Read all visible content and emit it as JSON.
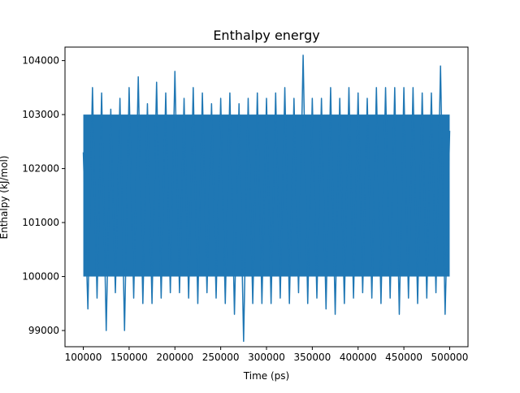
{
  "chart_data": {
    "type": "line",
    "title": "Enthalpy energy",
    "xlabel": "Time (ps)",
    "ylabel": "Enthalpy (kJ/mol)",
    "xlim": [
      80000,
      520000
    ],
    "ylim": [
      98700,
      104250
    ],
    "x_ticks": [
      100000,
      150000,
      200000,
      250000,
      300000,
      350000,
      400000,
      450000,
      500000
    ],
    "x_tick_labels": [
      "100000",
      "150000",
      "200000",
      "250000",
      "300000",
      "350000",
      "400000",
      "450000",
      "500000"
    ],
    "y_ticks": [
      99000,
      100000,
      101000,
      102000,
      103000,
      104000
    ],
    "y_tick_labels": [
      "99000",
      "100000",
      "101000",
      "102000",
      "103000",
      "104000"
    ],
    "grid": false,
    "legend": "none",
    "series": [
      {
        "color": "#1f77b4",
        "x": [
          100000,
          105000,
          110000,
          115000,
          120000,
          125000,
          130000,
          135000,
          140000,
          145000,
          150000,
          155000,
          160000,
          165000,
          170000,
          175000,
          180000,
          185000,
          190000,
          195000,
          200000,
          205000,
          210000,
          215000,
          220000,
          225000,
          230000,
          235000,
          240000,
          245000,
          250000,
          255000,
          260000,
          265000,
          270000,
          275000,
          280000,
          285000,
          290000,
          295000,
          300000,
          305000,
          310000,
          315000,
          320000,
          325000,
          330000,
          335000,
          340000,
          345000,
          350000,
          355000,
          360000,
          365000,
          370000,
          375000,
          380000,
          385000,
          390000,
          395000,
          400000,
          405000,
          410000,
          415000,
          420000,
          425000,
          430000,
          435000,
          440000,
          445000,
          450000,
          455000,
          460000,
          465000,
          470000,
          475000,
          480000,
          485000,
          490000,
          495000,
          500000
        ],
        "y": [
          102300,
          99400,
          103500,
          99600,
          103400,
          99000,
          103100,
          99700,
          103300,
          99000,
          103500,
          99600,
          103700,
          99500,
          103200,
          99500,
          103600,
          99600,
          103400,
          99700,
          103800,
          99700,
          103300,
          99600,
          103500,
          99500,
          103400,
          99700,
          103200,
          99600,
          103300,
          99500,
          103400,
          99300,
          103200,
          98800,
          103300,
          99500,
          103400,
          99500,
          103300,
          99500,
          103400,
          99600,
          103500,
          99500,
          103300,
          99700,
          104100,
          99500,
          103300,
          99600,
          103300,
          99400,
          103500,
          99300,
          103300,
          99500,
          103500,
          99600,
          103400,
          99700,
          103300,
          99600,
          103500,
          99500,
          103500,
          99600,
          103500,
          99300,
          103500,
          99600,
          103500,
          99500,
          103400,
          99600,
          103400,
          99700,
          103900,
          99300,
          102700
        ]
      }
    ]
  }
}
